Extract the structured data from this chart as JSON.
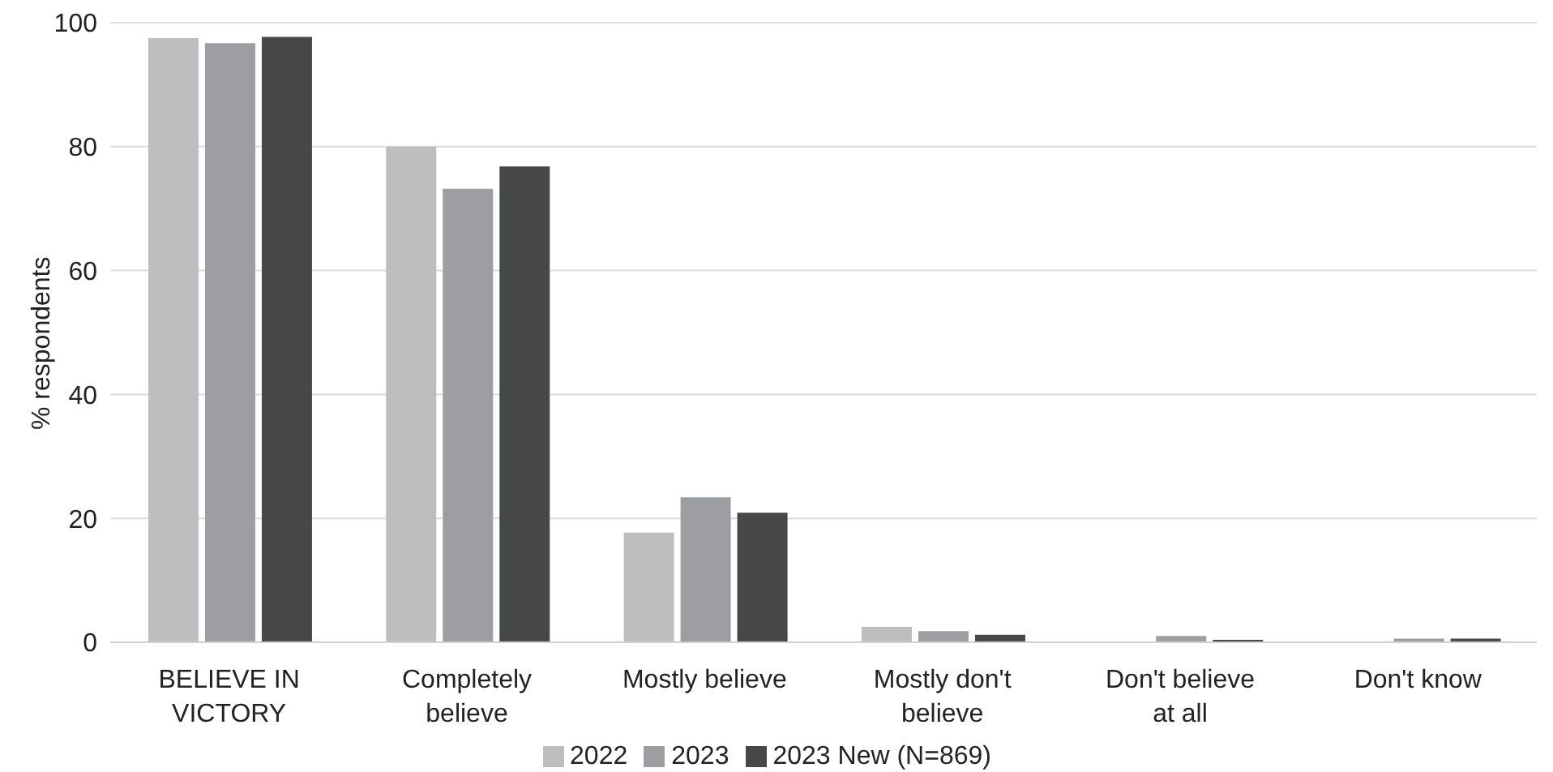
{
  "chart_data": {
    "type": "bar",
    "ylabel": "% respondents",
    "categories": [
      "BELIEVE IN VICTORY",
      "Completely believe",
      "Mostly believe",
      "Mostly don't believe",
      "Don't believe at all",
      "Don't know"
    ],
    "series": [
      {
        "name": "2022",
        "color": "#bdbec0",
        "values": [
          97.5,
          80,
          17.7,
          2.5,
          0,
          0
        ]
      },
      {
        "name": "2023",
        "color": "#9d9ea1",
        "values": [
          96.7,
          73.2,
          23.4,
          1.8,
          1.0,
          0.6
        ]
      },
      {
        "name": "2023 New (N=869)",
        "color": "#464749",
        "values": [
          97.7,
          76.8,
          20.9,
          1.2,
          0.4,
          0.6
        ]
      }
    ],
    "ylim": [
      0,
      100
    ],
    "yticks": [
      0,
      20,
      40,
      60,
      80,
      100
    ],
    "grid": "y",
    "legend": "bottom"
  }
}
